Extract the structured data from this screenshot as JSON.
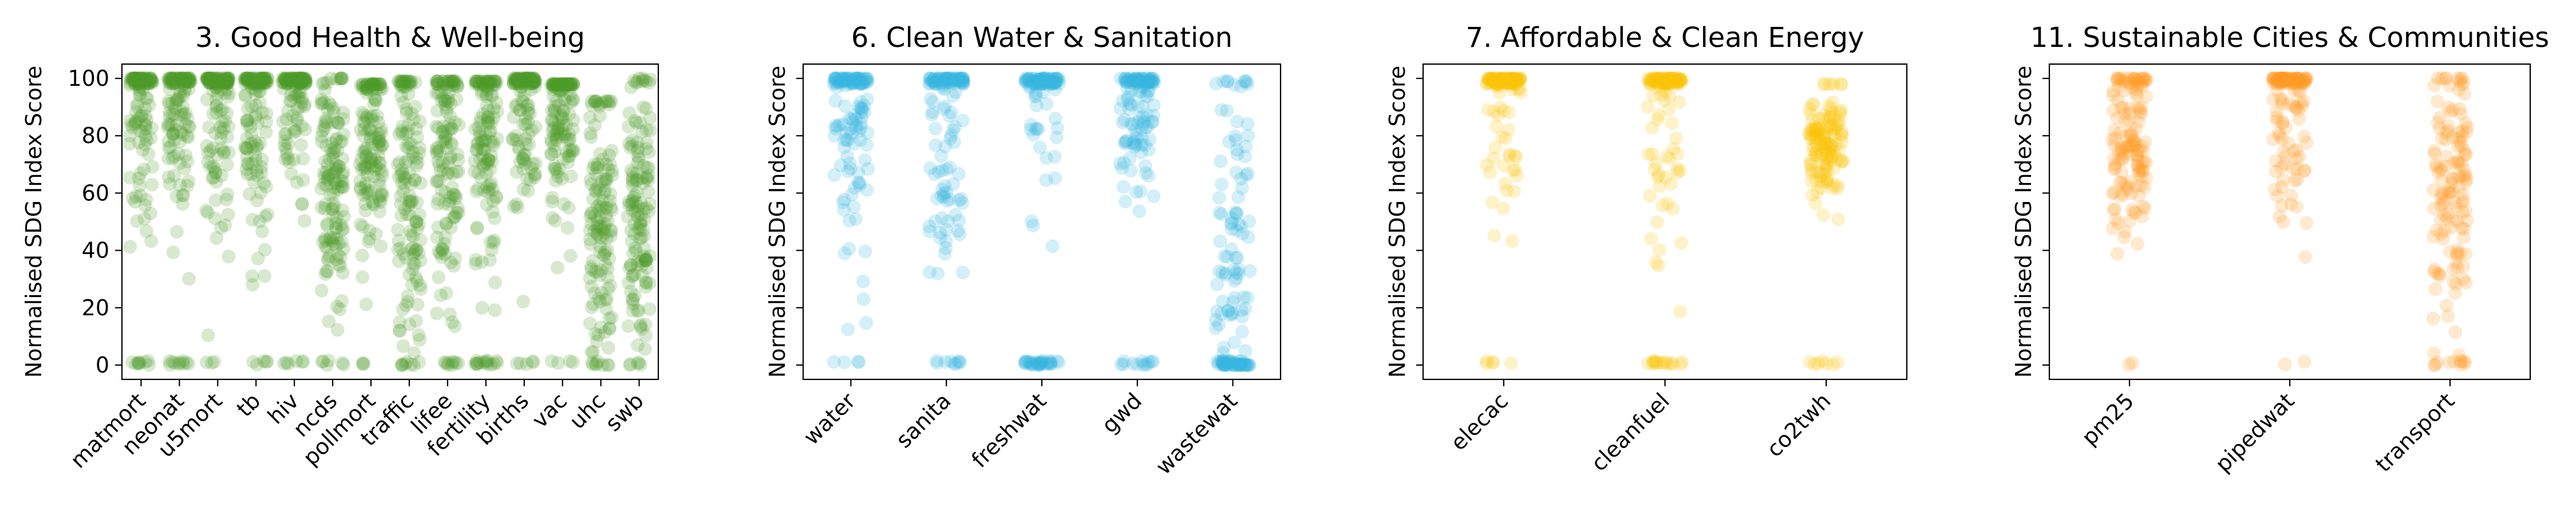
{
  "chart_data": [
    {
      "type": "scatter",
      "title": "3. Good Health & Well-being",
      "ylabel": "Normalised SDG Index Score",
      "ylim": [
        -5,
        105
      ],
      "yticks": [
        0,
        20,
        40,
        60,
        80,
        100
      ],
      "grid": false,
      "color": "#4c9a2a",
      "categories": [
        "matmort",
        "neonat",
        "u5mort",
        "tb",
        "hiv",
        "ncds",
        "pollmort",
        "traffic",
        "lifee",
        "fertility",
        "births",
        "vac",
        "uhc",
        "swb"
      ],
      "distributions": [
        {
          "median": 92,
          "spread": 22,
          "zero_frac": 0.06,
          "top_frac": 0.35,
          "max": 100
        },
        {
          "median": 88,
          "spread": 20,
          "zero_frac": 0.05,
          "top_frac": 0.3,
          "max": 100
        },
        {
          "median": 85,
          "spread": 22,
          "zero_frac": 0.02,
          "top_frac": 0.3,
          "max": 100
        },
        {
          "median": 88,
          "spread": 20,
          "zero_frac": 0.03,
          "top_frac": 0.3,
          "max": 100
        },
        {
          "median": 92,
          "spread": 18,
          "zero_frac": 0.05,
          "top_frac": 0.4,
          "max": 100
        },
        {
          "median": 62,
          "spread": 22,
          "zero_frac": 0.03,
          "top_frac": 0.05,
          "max": 100
        },
        {
          "median": 75,
          "spread": 22,
          "zero_frac": 0.02,
          "top_frac": 0.1,
          "max": 98
        },
        {
          "median": 60,
          "spread": 28,
          "zero_frac": 0.06,
          "top_frac": 0.05,
          "max": 99
        },
        {
          "median": 70,
          "spread": 26,
          "zero_frac": 0.05,
          "top_frac": 0.08,
          "max": 99
        },
        {
          "median": 78,
          "spread": 22,
          "zero_frac": 0.05,
          "top_frac": 0.15,
          "max": 99
        },
        {
          "median": 85,
          "spread": 20,
          "zero_frac": 0.03,
          "top_frac": 0.35,
          "max": 100
        },
        {
          "median": 85,
          "spread": 20,
          "zero_frac": 0.04,
          "top_frac": 0.1,
          "max": 98
        },
        {
          "median": 55,
          "spread": 25,
          "zero_frac": 0.04,
          "top_frac": 0.03,
          "max": 92
        },
        {
          "median": 50,
          "spread": 24,
          "zero_frac": 0.03,
          "top_frac": 0.05,
          "max": 100
        }
      ]
    },
    {
      "type": "scatter",
      "title": "6. Clean Water & Sanitation",
      "ylabel": "Normalised SDG Index Score",
      "ylim": [
        -5,
        105
      ],
      "yticks": [
        0,
        20,
        40,
        60,
        80,
        100
      ],
      "grid": false,
      "color": "#35b8e0",
      "categories": [
        "water",
        "sanita",
        "freshwat",
        "gwd",
        "wastewat"
      ],
      "distributions": [
        {
          "median": 85,
          "spread": 26,
          "zero_frac": 0.05,
          "top_frac": 0.3,
          "max": 100
        },
        {
          "median": 80,
          "spread": 30,
          "zero_frac": 0.05,
          "top_frac": 0.3,
          "max": 100
        },
        {
          "median": 92,
          "spread": 20,
          "zero_frac": 0.2,
          "top_frac": 0.55,
          "max": 100
        },
        {
          "median": 86,
          "spread": 14,
          "zero_frac": 0.05,
          "top_frac": 0.3,
          "max": 100
        },
        {
          "median": 35,
          "spread": 35,
          "zero_frac": 0.25,
          "top_frac": 0.03,
          "max": 99
        }
      ]
    },
    {
      "type": "scatter",
      "title": "7. Affordable & Clean Energy",
      "ylabel": "Normalised SDG Index Score",
      "ylim": [
        -5,
        105
      ],
      "yticks": [
        0,
        20,
        40,
        60,
        80,
        100
      ],
      "grid": false,
      "color": "#fcc30b",
      "categories": [
        "elecac",
        "cleanfuel",
        "co2twh"
      ],
      "distributions": [
        {
          "median": 95,
          "spread": 25,
          "zero_frac": 0.02,
          "top_frac": 0.55,
          "max": 100
        },
        {
          "median": 88,
          "spread": 30,
          "zero_frac": 0.08,
          "top_frac": 0.4,
          "max": 100
        },
        {
          "median": 78,
          "spread": 10,
          "zero_frac": 0.02,
          "top_frac": 0.02,
          "max": 98
        }
      ]
    },
    {
      "type": "scatter",
      "title": "11.  Sustainable Cities & Communities",
      "ylabel": "Normalised SDG Index Score",
      "ylim": [
        -5,
        105
      ],
      "yticks": [
        0,
        20,
        40,
        60,
        80,
        100
      ],
      "grid": false,
      "color": "#fd9d24",
      "categories": [
        "pm25",
        "pipedwat",
        "transport"
      ],
      "distributions": [
        {
          "median": 80,
          "spread": 18,
          "zero_frac": 0.02,
          "top_frac": 0.1,
          "max": 100
        },
        {
          "median": 88,
          "spread": 18,
          "zero_frac": 0.02,
          "top_frac": 0.4,
          "max": 100
        },
        {
          "median": 62,
          "spread": 24,
          "zero_frac": 0.04,
          "top_frac": 0.02,
          "max": 100
        }
      ]
    }
  ]
}
